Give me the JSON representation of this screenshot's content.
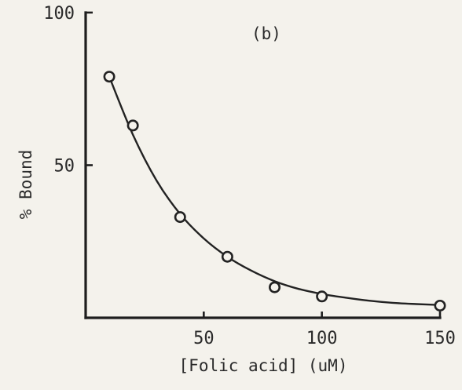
{
  "chart_data": {
    "type": "scatter",
    "title": "",
    "panel_label": "(b)",
    "xlabel": "[Folic acid] (uM)",
    "ylabel": "% Bound",
    "xlim": [
      0,
      150
    ],
    "ylim": [
      0,
      100
    ],
    "x_ticks": [
      50,
      100,
      150
    ],
    "y_ticks": [
      50,
      100
    ],
    "x_tick_labels": [
      "50",
      "100",
      "150"
    ],
    "y_tick_labels": [
      "50",
      "100"
    ],
    "grid": false,
    "legend": "none",
    "series": [
      {
        "x": [
          10,
          20,
          40,
          60,
          80,
          100,
          150
        ],
        "y": [
          79,
          63,
          33,
          20,
          10,
          7,
          4
        ]
      }
    ],
    "fit_curve": {
      "x": [
        10,
        20,
        30,
        40,
        50,
        60,
        70,
        80,
        90,
        100,
        110,
        120,
        130,
        140,
        150
      ],
      "y": [
        79,
        60,
        45,
        34,
        26,
        20,
        15.5,
        12,
        9.5,
        7.8,
        6.6,
        5.6,
        4.9,
        4.5,
        4.2
      ]
    }
  }
}
